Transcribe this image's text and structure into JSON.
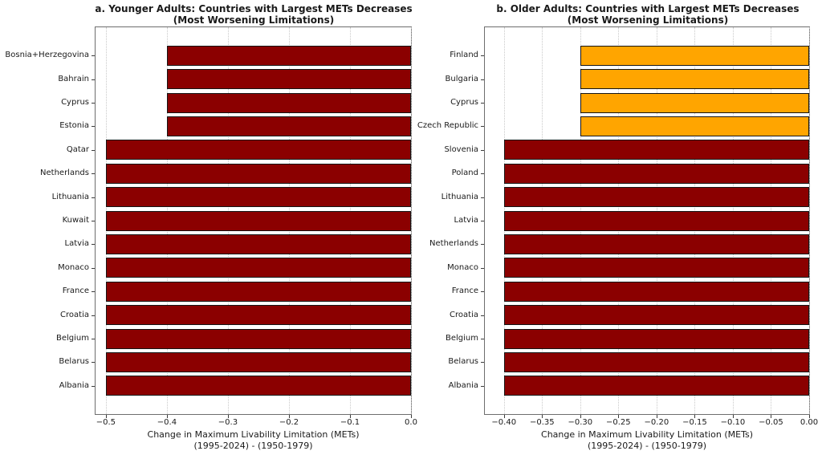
{
  "figure_title": "Countries with Largest METs Decreases",
  "chart_data": [
    {
      "type": "bar",
      "orientation": "horizontal",
      "panel": "a",
      "title": "a. Younger Adults: Countries with Largest METs Decreases",
      "subtitle": "(Most Worsening Limitations)",
      "xlabel_line1": "Change in Maximum Livability Limitation (METs)",
      "xlabel_line2": "(1995-2024) - (1950-1979)",
      "categories": [
        "Bosnia+Herzegovina",
        "Bahrain",
        "Cyprus",
        "Estonia",
        "Qatar",
        "Netherlands",
        "Lithuania",
        "Kuwait",
        "Latvia",
        "Monaco",
        "France",
        "Croatia",
        "Belgium",
        "Belarus",
        "Albania"
      ],
      "values": [
        -0.4,
        -0.4,
        -0.4,
        -0.4,
        -0.5,
        -0.5,
        -0.5,
        -0.5,
        -0.5,
        -0.5,
        -0.5,
        -0.5,
        -0.5,
        -0.5,
        -0.5
      ],
      "bar_colors": [
        "#8B0000",
        "#8B0000",
        "#8B0000",
        "#8B0000",
        "#8B0000",
        "#8B0000",
        "#8B0000",
        "#8B0000",
        "#8B0000",
        "#8B0000",
        "#8B0000",
        "#8B0000",
        "#8B0000",
        "#8B0000",
        "#8B0000"
      ],
      "xlim": [
        -0.517,
        0
      ],
      "xticks": [
        -0.5,
        -0.4,
        -0.3,
        -0.2,
        -0.1,
        0.0
      ],
      "xtick_labels": [
        "−0.5",
        "−0.4",
        "−0.3",
        "−0.2",
        "−0.1",
        "0.0"
      ],
      "grid": "vertical-dotted",
      "legend": "none"
    },
    {
      "type": "bar",
      "orientation": "horizontal",
      "panel": "b",
      "title": "b. Older Adults: Countries with Largest METs Decreases",
      "subtitle": "(Most Worsening Limitations)",
      "xlabel_line1": "Change in Maximum Livability Limitation (METs)",
      "xlabel_line2": "(1995-2024) - (1950-1979)",
      "categories": [
        "Finland",
        "Bulgaria",
        "Cyprus",
        "Czech Republic",
        "Slovenia",
        "Poland",
        "Lithuania",
        "Latvia",
        "Netherlands",
        "Monaco",
        "France",
        "Croatia",
        "Belgium",
        "Belarus",
        "Albania"
      ],
      "values": [
        -0.3,
        -0.3,
        -0.3,
        -0.3,
        -0.4,
        -0.4,
        -0.4,
        -0.4,
        -0.4,
        -0.4,
        -0.4,
        -0.4,
        -0.4,
        -0.4,
        -0.4
      ],
      "bar_colors": [
        "#FFA500",
        "#FFA500",
        "#FFA500",
        "#FFA500",
        "#8B0000",
        "#8B0000",
        "#8B0000",
        "#8B0000",
        "#8B0000",
        "#8B0000",
        "#8B0000",
        "#8B0000",
        "#8B0000",
        "#8B0000",
        "#8B0000"
      ],
      "xlim": [
        -0.425,
        0
      ],
      "xticks": [
        -0.4,
        -0.35,
        -0.3,
        -0.25,
        -0.2,
        -0.15,
        -0.1,
        -0.05,
        0.0
      ],
      "xtick_labels": [
        "−0.40",
        "−0.35",
        "−0.30",
        "−0.25",
        "−0.20",
        "−0.15",
        "−0.10",
        "−0.05",
        "0.00"
      ],
      "grid": "vertical-dotted",
      "legend": "none"
    }
  ],
  "colors": {
    "bar_dark_red": "#8B0000",
    "bar_orange": "#FFA500",
    "bar_edge": "#151515",
    "grid": "#c9c9c9",
    "spine": "#6e6e6e",
    "text": "#1a1a1a",
    "background": "#ffffff"
  }
}
